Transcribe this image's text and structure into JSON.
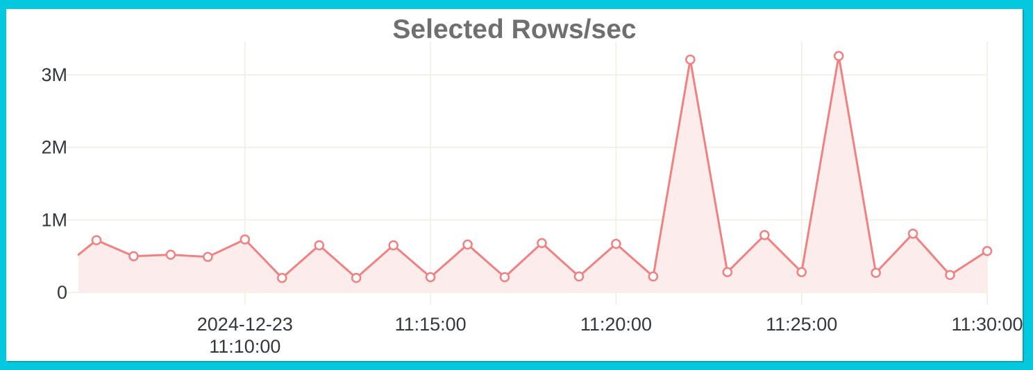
{
  "frame": {
    "border_color": "#04c8de",
    "panel_background": "#ffffff"
  },
  "chart_data": {
    "type": "area",
    "title": "Selected Rows/sec",
    "date": "2024-12-23",
    "x_interval_seconds": 60,
    "x": [
      "11:06:00",
      "11:07:00",
      "11:08:00",
      "11:09:00",
      "11:10:00",
      "11:11:00",
      "11:12:00",
      "11:13:00",
      "11:14:00",
      "11:15:00",
      "11:16:00",
      "11:17:00",
      "11:18:00",
      "11:19:00",
      "11:20:00",
      "11:21:00",
      "11:22:00",
      "11:23:00",
      "11:24:00",
      "11:25:00",
      "11:26:00",
      "11:27:00",
      "11:28:00",
      "11:29:00",
      "11:30:00"
    ],
    "values_millions": [
      0.72,
      0.5,
      0.52,
      0.49,
      0.73,
      0.2,
      0.65,
      0.2,
      0.65,
      0.21,
      0.66,
      0.21,
      0.68,
      0.22,
      0.67,
      0.22,
      3.21,
      0.28,
      0.79,
      0.28,
      3.26,
      0.27,
      0.81,
      0.24,
      0.57
    ],
    "edge_start_value_millions": 0.52,
    "xlabel": "",
    "ylabel": "",
    "ylim_millions": [
      0,
      3.45
    ],
    "grid": true,
    "legend": null,
    "y_ticks": [
      {
        "value_millions": 0,
        "label": "0"
      },
      {
        "value_millions": 1,
        "label": "1M"
      },
      {
        "value_millions": 2,
        "label": "2M"
      },
      {
        "value_millions": 3,
        "label": "3M"
      }
    ],
    "x_ticks": [
      {
        "index": 4,
        "lines": [
          "2024-12-23",
          "11:10:00"
        ]
      },
      {
        "index": 9,
        "lines": [
          "11:15:00"
        ]
      },
      {
        "index": 14,
        "lines": [
          "11:20:00"
        ]
      },
      {
        "index": 19,
        "lines": [
          "11:25:00"
        ]
      },
      {
        "index": 24,
        "lines": [
          "11:30:00"
        ]
      }
    ],
    "colors": {
      "line": "#f18080",
      "area_fill": "#fdecec",
      "marker_fill": "#ffffff",
      "marker_stroke": "#f18080",
      "gridline": "#f0eedf",
      "title_text": "#6f6f6f",
      "tick_text": "#33383d"
    }
  }
}
